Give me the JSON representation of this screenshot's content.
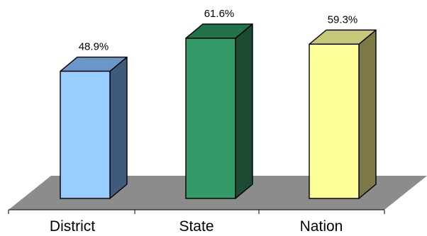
{
  "chart_data": {
    "type": "bar",
    "categories": [
      "District",
      "State",
      "Nation"
    ],
    "values": [
      48.9,
      61.6,
      59.3
    ],
    "data_labels": [
      "48.9%",
      "61.6%",
      "59.3%"
    ],
    "title": "",
    "xlabel": "",
    "ylabel": "",
    "ylim": [
      0,
      70
    ],
    "grid": false,
    "legend": "none",
    "style": "3d-column",
    "colors": [
      {
        "front": "#99ccff",
        "top": "#6a96c8",
        "side": "#3f5a7d"
      },
      {
        "front": "#339966",
        "top": "#23724a",
        "side": "#1b4b33"
      },
      {
        "front": "#ffff99",
        "top": "#c8c87a",
        "side": "#7d7a48"
      }
    ],
    "floor_color": "#8c8c8c"
  }
}
